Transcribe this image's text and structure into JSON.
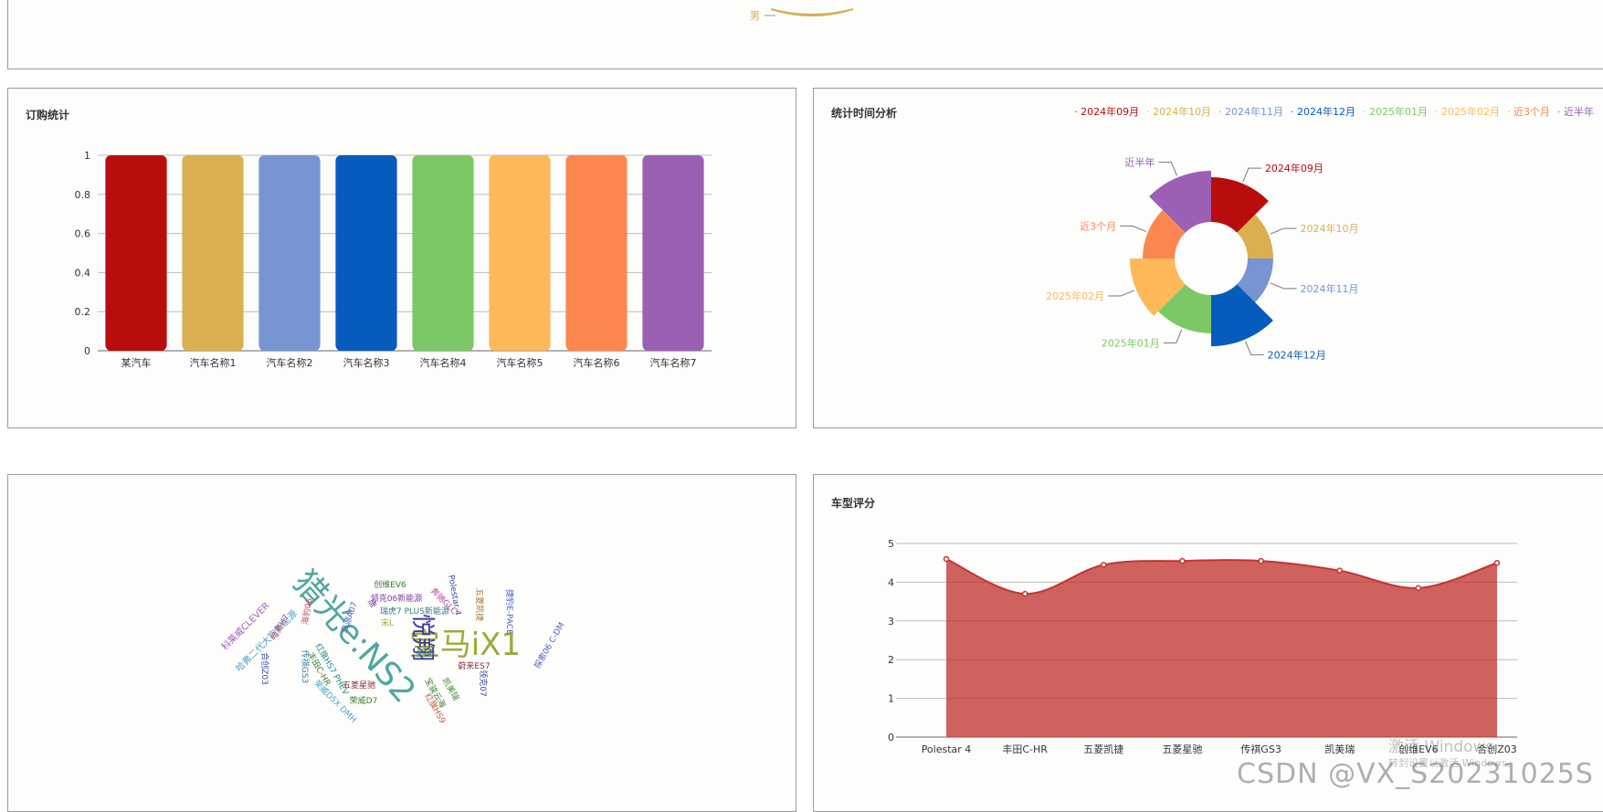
{
  "top_panel": {
    "slice_label": "男",
    "color": "#D6AE4F"
  },
  "order_stats": {
    "title": "订购统计",
    "chart_data": {
      "type": "bar",
      "categories": [
        "某汽车",
        "汽车名称1",
        "汽车名称2",
        "汽车名称3",
        "汽车名称4",
        "汽车名称5",
        "汽车名称6",
        "汽车名称7"
      ],
      "values": [
        1,
        1,
        1,
        1,
        1,
        1,
        1,
        1
      ],
      "colors": [
        "#B80D0C",
        "#D9AF4F",
        "#7795D2",
        "#075BBD",
        "#7DC866",
        "#FDB85A",
        "#FC864F",
        "#9B60B4"
      ],
      "yticks": [
        0,
        0.2,
        0.4,
        0.6,
        0.8,
        1
      ],
      "ylim": [
        0,
        1
      ],
      "title": "订购统计"
    }
  },
  "time_analysis": {
    "title": "统计时间分析",
    "chart_data": {
      "type": "pie",
      "variant": "rose",
      "categories": [
        "2024年09月",
        "2024年10月",
        "2024年11月",
        "2024年12月",
        "2025年01月",
        "2025年02月",
        "近3个月",
        "近半年"
      ],
      "values": [
        5,
        2,
        2,
        6,
        4,
        5,
        3,
        6
      ],
      "colors": [
        "#B80D0C",
        "#D9AF4F",
        "#7795D2",
        "#075BBD",
        "#7DC866",
        "#FDB85A",
        "#FC864F",
        "#9B60B4"
      ],
      "title": "统计时间分析"
    }
  },
  "word_cloud": {
    "words": [
      {
        "text": "猎光e:NS2",
        "color": "#4DA6A0"
      },
      {
        "text": "宝马iX1",
        "color": "#A0A83A"
      },
      {
        "text": "悦翔",
        "color": "#3C3A9A"
      },
      {
        "text": "科莱威CLEVER",
        "color": "#A05CB6"
      },
      {
        "text": "哈弗二代大狗新能源",
        "color": "#4BA3C5"
      },
      {
        "text": "哈弗H7",
        "color": "#C44E6A"
      },
      {
        "text": "宝骏云海",
        "color": "#4B7F3A"
      },
      {
        "text": "创维EV6",
        "color": "#3C7A2A"
      },
      {
        "text": "领克06新能源",
        "color": "#7A40A0"
      },
      {
        "text": "瑞虎7 PLUS新能源",
        "color": "#3C7A8A"
      },
      {
        "text": "奔驰GLC",
        "color": "#B04A9A"
      },
      {
        "text": "Polestar 4",
        "color": "#3A4AA0"
      },
      {
        "text": "五菱凯捷",
        "color": "#B07A2A"
      },
      {
        "text": "探索06 C-DM",
        "color": "#4A60C0"
      },
      {
        "text": "捷豹E-PACE",
        "color": "#4A60C0"
      },
      {
        "text": "丰田C-HR",
        "color": "#3C7A2A"
      },
      {
        "text": "红旗HS7 PHEV",
        "color": "#2A8A8A"
      },
      {
        "text": "传祺GS3",
        "color": "#3A7AA0"
      },
      {
        "text": "五菱星驰",
        "color": "#8A2A3A"
      },
      {
        "text": "蔚来ES7",
        "color": "#8A2A3A"
      },
      {
        "text": "凯美瑞",
        "color": "#4A8A3A"
      },
      {
        "text": "领克07",
        "color": "#3A4AA0"
      },
      {
        "text": "荣威D7",
        "color": "#3C7A2A"
      },
      {
        "text": "荣威D5X DMH",
        "color": "#4BA3C5"
      },
      {
        "text": "红旗HS9",
        "color": "#C05A3A"
      },
      {
        "text": "合创Z03",
        "color": "#3A4AA0"
      },
      {
        "text": "星越L",
        "color": "#3A8A6A"
      },
      {
        "text": "宋L",
        "color": "#A0A83A"
      },
      {
        "text": "唐",
        "color": "#7A40A0"
      },
      {
        "text": "海豹06",
        "color": "#C44E6A"
      },
      {
        "text": "启源A07",
        "color": "#4A60C0"
      }
    ]
  },
  "model_rating": {
    "title": "车型评分",
    "chart_data": {
      "type": "area",
      "categories": [
        "Polestar 4",
        "丰田C-HR",
        "五菱凯捷",
        "五菱星驰",
        "传祺GS3",
        "凯美瑞",
        "创维EV6",
        "合创Z03"
      ],
      "values": [
        4.6,
        3.7,
        4.45,
        4.55,
        4.55,
        4.3,
        3.85,
        4.5
      ],
      "yticks": [
        0,
        1,
        2,
        3,
        4,
        5
      ],
      "ylim": [
        0,
        5
      ],
      "color": "#C23531",
      "title": "车型评分"
    }
  },
  "watermark": {
    "activate_windows": "激活 Windows",
    "goto_settings": "转到设置以激活 Windows。",
    "csdn": "CSDN @VX_S20231025S"
  }
}
